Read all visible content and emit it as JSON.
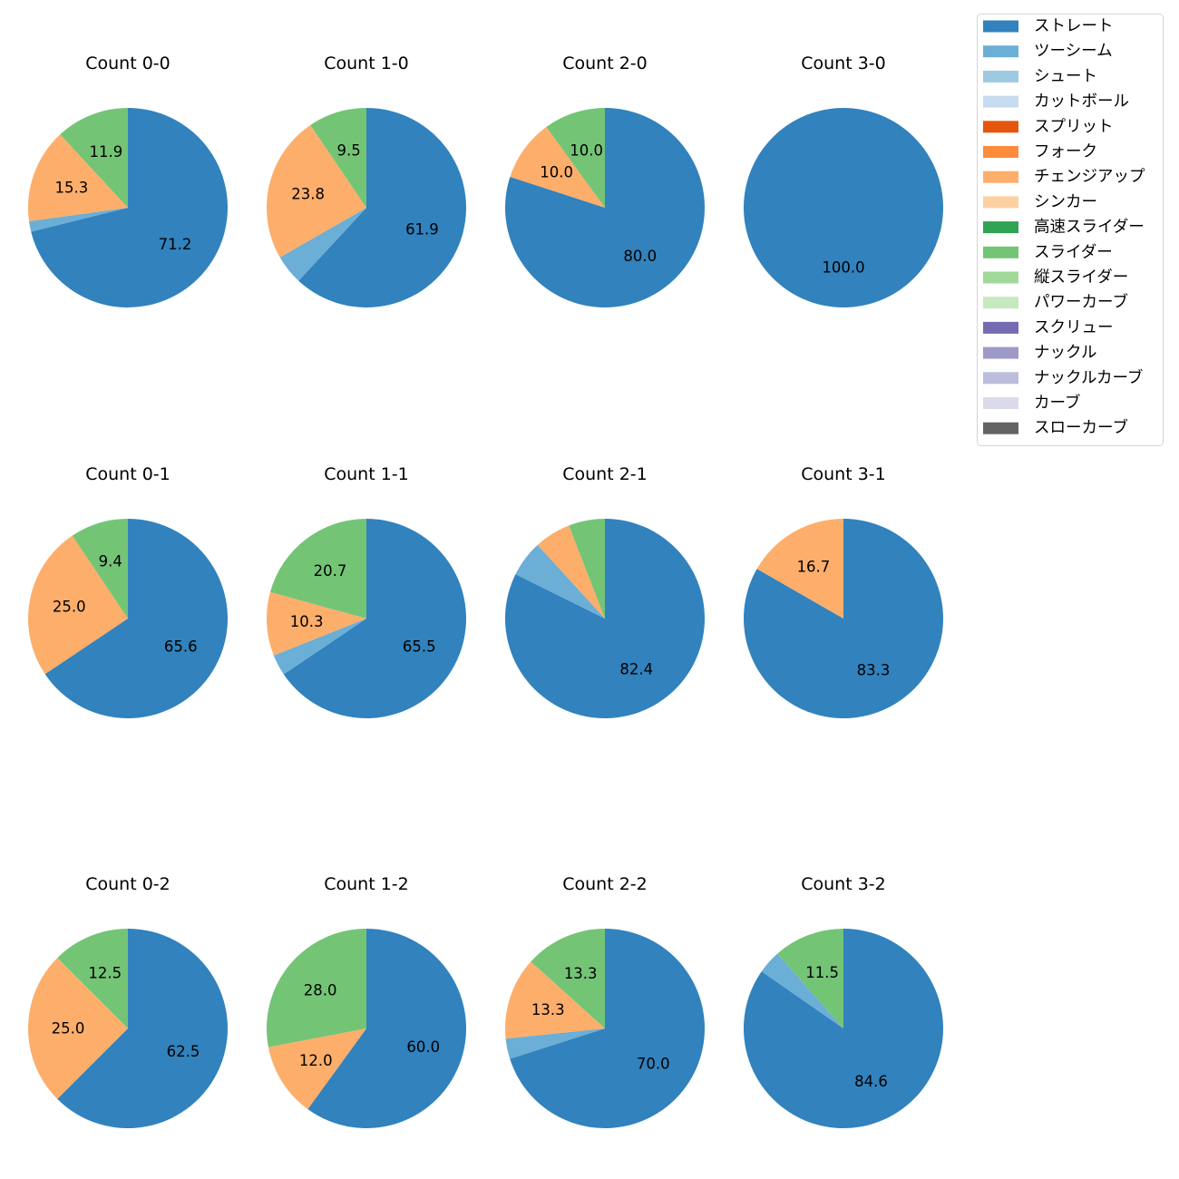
{
  "chart_data": {
    "type": "pie",
    "start_angle": 90,
    "direction": "clockwise",
    "legend": {
      "placement": "top-right",
      "entries": [
        {
          "label": "ストレート",
          "color": "#3182bd"
        },
        {
          "label": "ツーシーム",
          "color": "#6baed6"
        },
        {
          "label": "シュート",
          "color": "#9ecae1"
        },
        {
          "label": "カットボール",
          "color": "#c6dbef"
        },
        {
          "label": "スプリット",
          "color": "#e6550d"
        },
        {
          "label": "フォーク",
          "color": "#fd8d3c"
        },
        {
          "label": "チェンジアップ",
          "color": "#fdae6b"
        },
        {
          "label": "シンカー",
          "color": "#fdd0a2"
        },
        {
          "label": "高速スライダー",
          "color": "#31a354"
        },
        {
          "label": "スライダー",
          "color": "#74c476"
        },
        {
          "label": "縦スライダー",
          "color": "#a1d99b"
        },
        {
          "label": "パワーカーブ",
          "color": "#c7e9c0"
        },
        {
          "label": "スクリュー",
          "color": "#756bb1"
        },
        {
          "label": "ナックル",
          "color": "#9e9ac8"
        },
        {
          "label": "ナックルカーブ",
          "color": "#bcbddc"
        },
        {
          "label": "カーブ",
          "color": "#dadaeb"
        },
        {
          "label": "スローカーブ",
          "color": "#636363"
        }
      ]
    },
    "pies": [
      {
        "title": "Count 0-0",
        "slices": [
          {
            "pitch": "ストレート",
            "value": 71.2
          },
          {
            "pitch": "ツーシーム",
            "value": 1.7
          },
          {
            "pitch": "チェンジアップ",
            "value": 15.3
          },
          {
            "pitch": "スライダー",
            "value": 11.9
          }
        ]
      },
      {
        "title": "Count 1-0",
        "slices": [
          {
            "pitch": "ストレート",
            "value": 61.9
          },
          {
            "pitch": "ツーシーム",
            "value": 4.8
          },
          {
            "pitch": "チェンジアップ",
            "value": 23.8
          },
          {
            "pitch": "スライダー",
            "value": 9.5
          }
        ]
      },
      {
        "title": "Count 2-0",
        "slices": [
          {
            "pitch": "ストレート",
            "value": 80.0
          },
          {
            "pitch": "チェンジアップ",
            "value": 10.0
          },
          {
            "pitch": "スライダー",
            "value": 10.0
          }
        ]
      },
      {
        "title": "Count 3-0",
        "slices": [
          {
            "pitch": "ストレート",
            "value": 100.0
          }
        ]
      },
      {
        "title": "Count 0-1",
        "slices": [
          {
            "pitch": "ストレート",
            "value": 65.6
          },
          {
            "pitch": "チェンジアップ",
            "value": 25.0
          },
          {
            "pitch": "スライダー",
            "value": 9.4
          }
        ]
      },
      {
        "title": "Count 1-1",
        "slices": [
          {
            "pitch": "ストレート",
            "value": 65.5
          },
          {
            "pitch": "ツーシーム",
            "value": 3.4
          },
          {
            "pitch": "チェンジアップ",
            "value": 10.3
          },
          {
            "pitch": "スライダー",
            "value": 20.7
          }
        ]
      },
      {
        "title": "Count 2-1",
        "slices": [
          {
            "pitch": "ストレート",
            "value": 82.4
          },
          {
            "pitch": "ツーシーム",
            "value": 5.9
          },
          {
            "pitch": "チェンジアップ",
            "value": 5.9
          },
          {
            "pitch": "スライダー",
            "value": 5.9
          }
        ]
      },
      {
        "title": "Count 3-1",
        "slices": [
          {
            "pitch": "ストレート",
            "value": 83.3
          },
          {
            "pitch": "チェンジアップ",
            "value": 16.7
          }
        ]
      },
      {
        "title": "Count 0-2",
        "slices": [
          {
            "pitch": "ストレート",
            "value": 62.5
          },
          {
            "pitch": "チェンジアップ",
            "value": 25.0
          },
          {
            "pitch": "スライダー",
            "value": 12.5
          }
        ]
      },
      {
        "title": "Count 1-2",
        "slices": [
          {
            "pitch": "ストレート",
            "value": 60.0
          },
          {
            "pitch": "チェンジアップ",
            "value": 12.0
          },
          {
            "pitch": "スライダー",
            "value": 28.0
          }
        ]
      },
      {
        "title": "Count 2-2",
        "slices": [
          {
            "pitch": "ストレート",
            "value": 70.0
          },
          {
            "pitch": "ツーシーム",
            "value": 3.3
          },
          {
            "pitch": "チェンジアップ",
            "value": 13.3
          },
          {
            "pitch": "スライダー",
            "value": 13.3
          }
        ]
      },
      {
        "title": "Count 3-2",
        "slices": [
          {
            "pitch": "ストレート",
            "value": 84.6
          },
          {
            "pitch": "ツーシーム",
            "value": 3.8
          },
          {
            "pitch": "スライダー",
            "value": 11.5
          }
        ]
      }
    ]
  }
}
